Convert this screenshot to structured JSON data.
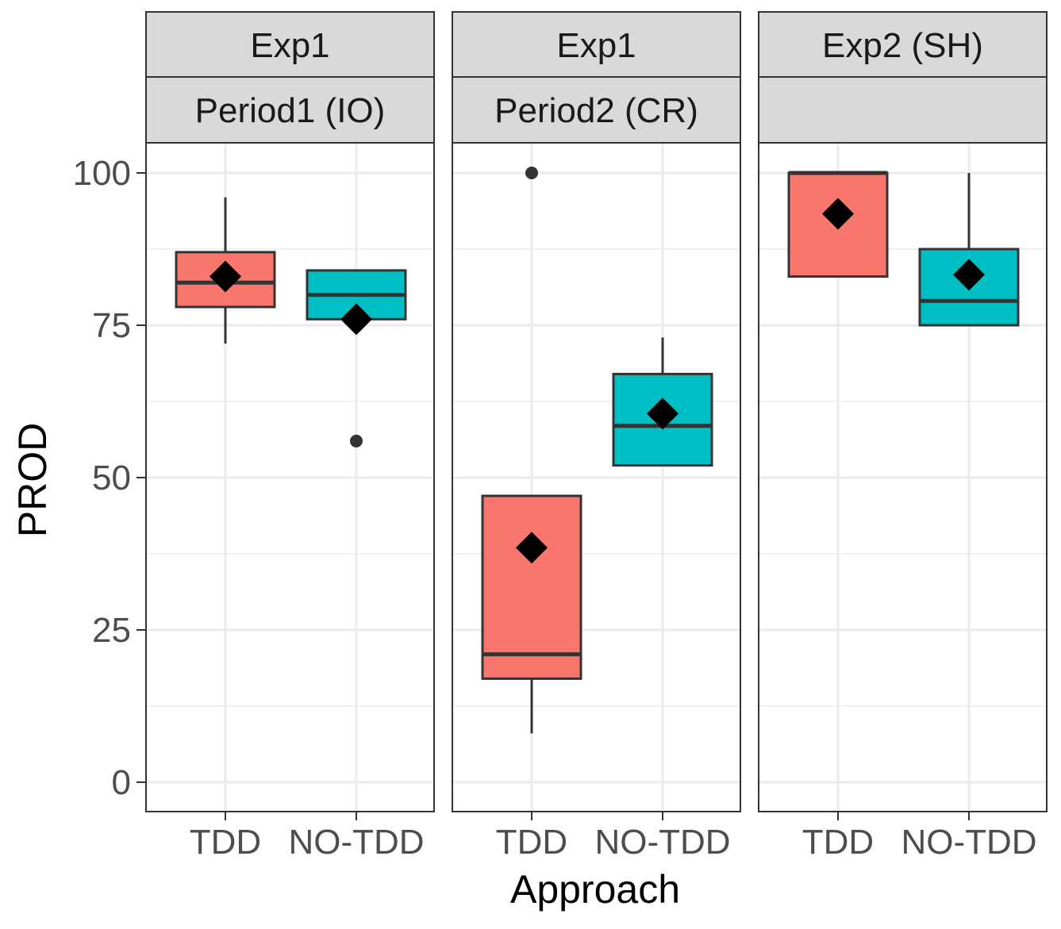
{
  "chart_data": {
    "type": "boxplot",
    "xlabel": "Approach",
    "ylabel": "PROD",
    "ylim": [
      -5,
      105
    ],
    "yticks": [
      0,
      25,
      50,
      75,
      100
    ],
    "grid": true,
    "categories": [
      "TDD",
      "NO-TDD"
    ],
    "colors": {
      "TDD": "#F8766D",
      "NO-TDD": "#00BFC4"
    },
    "panels": [
      {
        "strip_top": "Exp1",
        "strip_bottom": "Period1 (IO)",
        "boxes": [
          {
            "category": "TDD",
            "whisker_low": 72,
            "q1": 78,
            "median": 82,
            "q3": 87,
            "whisker_high": 96,
            "mean": 83,
            "outliers": []
          },
          {
            "category": "NO-TDD",
            "whisker_low": 76,
            "q1": 76,
            "median": 80,
            "q3": 84,
            "whisker_high": 84,
            "mean": 76,
            "outliers": [
              56
            ]
          }
        ]
      },
      {
        "strip_top": "Exp1",
        "strip_bottom": "Period2 (CR)",
        "boxes": [
          {
            "category": "TDD",
            "whisker_low": 8,
            "q1": 17,
            "median": 21,
            "q3": 47,
            "whisker_high": 47,
            "mean": 38.5,
            "outliers": [
              100
            ]
          },
          {
            "category": "NO-TDD",
            "whisker_low": 52,
            "q1": 52,
            "median": 58.5,
            "q3": 67,
            "whisker_high": 73,
            "mean": 60.5,
            "outliers": []
          }
        ]
      },
      {
        "strip_top": "Exp2 (SH)",
        "strip_bottom": "",
        "boxes": [
          {
            "category": "TDD",
            "whisker_low": 83,
            "q1": 83,
            "median": 100,
            "q3": 100,
            "whisker_high": 100,
            "mean": 93.3,
            "outliers": []
          },
          {
            "category": "NO-TDD",
            "whisker_low": 75,
            "q1": 75,
            "median": 79,
            "q3": 87.5,
            "whisker_high": 100,
            "mean": 83.3,
            "outliers": []
          }
        ]
      }
    ]
  }
}
